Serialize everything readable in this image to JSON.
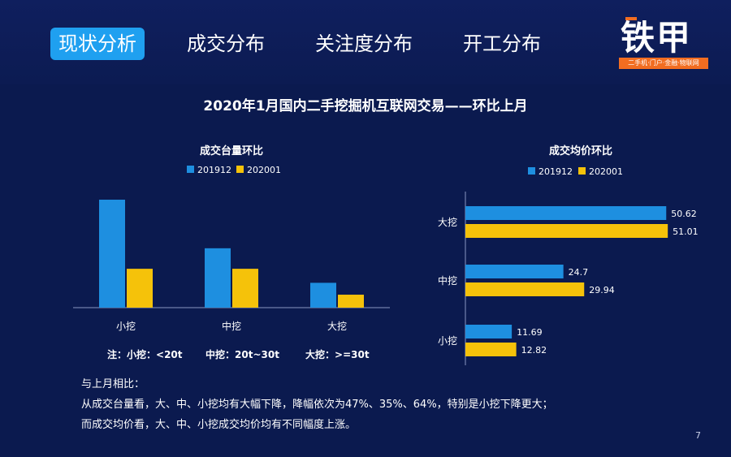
{
  "tabs": [
    {
      "label": "现状分析",
      "active": true
    },
    {
      "label": "成交分布",
      "active": false
    },
    {
      "label": "关注度分布",
      "active": false
    },
    {
      "label": "开工分布",
      "active": false
    }
  ],
  "logo": {
    "text": "铁甲",
    "subtitle": "二手机·门户·金融·物联网"
  },
  "title": "2020年1月国内二手挖掘机互联网交易——环比上月",
  "colors": {
    "series_2019": "#1e8fe0",
    "series_2020": "#f5c20a",
    "background": "#0b1a4f",
    "accent": "#1fa0f0",
    "brand": "#f26d21"
  },
  "chart_data": [
    {
      "type": "bar",
      "title": "成交台量环比",
      "categories": [
        "小挖",
        "中挖",
        "大挖"
      ],
      "series": [
        {
          "name": "201912",
          "values": [
            100,
            55,
            23
          ]
        },
        {
          "name": "202001",
          "values": [
            36,
            36,
            12
          ]
        }
      ],
      "ylim": [
        0,
        100
      ],
      "grid": false,
      "legend": "top"
    },
    {
      "type": "bar",
      "orientation": "horizontal",
      "title": "成交均价环比",
      "categories": [
        "大挖",
        "中挖",
        "小挖"
      ],
      "series": [
        {
          "name": "201912",
          "values": [
            50.62,
            24.7,
            11.69
          ]
        },
        {
          "name": "202001",
          "values": [
            51.01,
            29.94,
            12.82
          ]
        }
      ],
      "xlim": [
        0,
        52
      ],
      "grid": false,
      "legend": "top"
    }
  ],
  "footnotes": [
    {
      "label": "注：小挖：",
      "value": "<20t"
    },
    {
      "label": "中挖：",
      "value": "20t~30t"
    },
    {
      "label": "大挖：",
      "value": ">=30t"
    }
  ],
  "summary": {
    "heading": "与上月相比：",
    "line1": "从成交台量看，大、中、小挖均有大幅下降，降幅依次为47%、35%、64%，特别是小挖下降更大；",
    "line2": "而成交均价看，大、中、小挖成交均价均有不同幅度上涨。"
  },
  "page_number": "7"
}
